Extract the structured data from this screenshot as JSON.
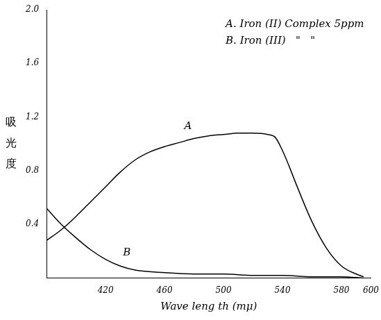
{
  "chart_data": {
    "type": "line",
    "x_label": "Wave leng th (mμ)",
    "y_label": "吸光度",
    "annotations": [
      "A. Iron (II) Complex 5ppm",
      "B. Iron (III)   \"   \""
    ],
    "series": [
      {
        "name": "A",
        "color": "#000000",
        "x": [
          380,
          390,
          400,
          410,
          420,
          430,
          440,
          450,
          460,
          470,
          480,
          490,
          500,
          510,
          520,
          530,
          535,
          540,
          545,
          550,
          560,
          570,
          580,
          590,
          595
        ],
        "values": [
          0.28,
          0.36,
          0.46,
          0.57,
          0.68,
          0.79,
          0.88,
          0.94,
          0.98,
          1.01,
          1.04,
          1.06,
          1.07,
          1.08,
          1.08,
          1.07,
          1.05,
          0.95,
          0.82,
          0.68,
          0.42,
          0.22,
          0.09,
          0.03,
          0.01
        ]
      },
      {
        "name": "B",
        "color": "#000000",
        "x": [
          380,
          390,
          400,
          410,
          420,
          430,
          440,
          460,
          480,
          500,
          520,
          540,
          560,
          580,
          595
        ],
        "values": [
          0.52,
          0.4,
          0.3,
          0.21,
          0.14,
          0.09,
          0.06,
          0.04,
          0.03,
          0.03,
          0.02,
          0.02,
          0.01,
          0.01,
          0
        ]
      }
    ],
    "xlim": [
      380,
      600
    ],
    "xticks": [
      420,
      460,
      500,
      540,
      580,
      600
    ],
    "ylim": [
      0,
      2
    ],
    "yticks": [
      0.4,
      0.8,
      1.2,
      1.6,
      {
        "value": 2,
        "label": "2.0"
      }
    ],
    "grid": false
  }
}
